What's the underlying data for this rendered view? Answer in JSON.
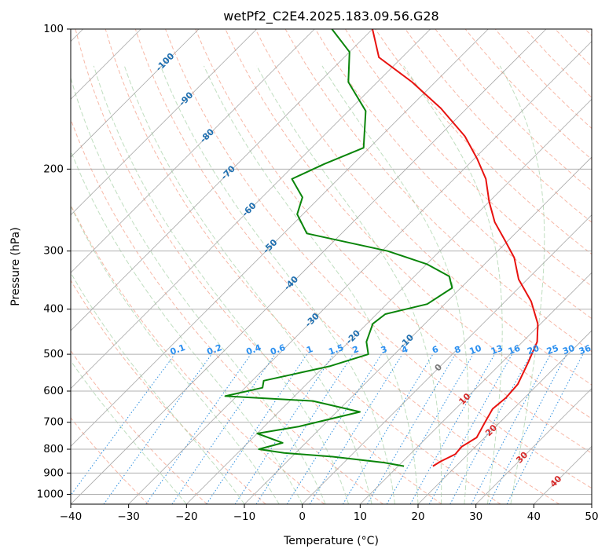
{
  "chart_data": {
    "type": "line",
    "chart_kind": "skew-t log-p",
    "title": "wetPf2_C2E4.2025.183.09.56.G28",
    "xlabel": "Temperature (°C)",
    "ylabel": "Pressure (hPa)",
    "xlim": [
      -40,
      50
    ],
    "ylim": [
      1050,
      100
    ],
    "y_scale": "log",
    "grid": true,
    "x_ticks": [
      -40,
      -30,
      -20,
      -10,
      0,
      10,
      20,
      30,
      40,
      50
    ],
    "y_ticks": [
      100,
      200,
      300,
      400,
      500,
      600,
      700,
      800,
      900,
      1000
    ],
    "colors": {
      "temperature": "#e8120f",
      "dewpoint": "#0a850a",
      "isotherm": "#9a9a9a",
      "dry_adiabat": "#f4a08a",
      "moist_adiabat": "#96c896",
      "mixing_ratio": "#3090e0",
      "isotherm_label": "#1f6fb0",
      "wetbulb_label": "#d62a2a"
    },
    "series": [
      {
        "role": "temperature",
        "points": [
          {
            "t": 16.0,
            "p": 870
          },
          {
            "t": 16.5,
            "p": 850
          },
          {
            "t": 17.8,
            "p": 820
          },
          {
            "t": 17.6,
            "p": 790
          },
          {
            "t": 18.6,
            "p": 755
          },
          {
            "t": 17.4,
            "p": 700
          },
          {
            "t": 16.4,
            "p": 655
          },
          {
            "t": 16.8,
            "p": 620
          },
          {
            "t": 16.5,
            "p": 580
          },
          {
            "t": 14.5,
            "p": 520
          },
          {
            "t": 12.5,
            "p": 470
          },
          {
            "t": 9.5,
            "p": 430
          },
          {
            "t": 4.5,
            "p": 385
          },
          {
            "t": -1.5,
            "p": 345
          },
          {
            "t": -6.0,
            "p": 310
          },
          {
            "t": -10.5,
            "p": 285
          },
          {
            "t": -15.5,
            "p": 260
          },
          {
            "t": -20.0,
            "p": 235
          },
          {
            "t": -24.5,
            "p": 210
          },
          {
            "t": -29.5,
            "p": 190
          },
          {
            "t": -35.5,
            "p": 170
          },
          {
            "t": -44.5,
            "p": 148
          },
          {
            "t": -54.0,
            "p": 130
          },
          {
            "t": -64.0,
            "p": 115
          },
          {
            "t": -70.0,
            "p": 100
          }
        ]
      },
      {
        "role": "dewpoint",
        "points": [
          {
            "t": 11.0,
            "p": 870
          },
          {
            "t": 7.0,
            "p": 855
          },
          {
            "t": -3.0,
            "p": 830
          },
          {
            "t": -12.0,
            "p": 815
          },
          {
            "t": -17.0,
            "p": 800
          },
          {
            "t": -14.0,
            "p": 775
          },
          {
            "t": -20.0,
            "p": 740
          },
          {
            "t": -14.0,
            "p": 715
          },
          {
            "t": -6.0,
            "p": 665
          },
          {
            "t": -16.0,
            "p": 630
          },
          {
            "t": -32.0,
            "p": 615
          },
          {
            "t": -27.0,
            "p": 590
          },
          {
            "t": -28.0,
            "p": 570
          },
          {
            "t": -19.0,
            "p": 530
          },
          {
            "t": -14.5,
            "p": 500
          },
          {
            "t": -17.0,
            "p": 470
          },
          {
            "t": -19.0,
            "p": 430
          },
          {
            "t": -18.5,
            "p": 410
          },
          {
            "t": -13.0,
            "p": 390
          },
          {
            "t": -11.5,
            "p": 360
          },
          {
            "t": -14.0,
            "p": 340
          },
          {
            "t": -20.0,
            "p": 320
          },
          {
            "t": -29.0,
            "p": 300
          },
          {
            "t": -46.0,
            "p": 275
          },
          {
            "t": -51.0,
            "p": 250
          },
          {
            "t": -53.0,
            "p": 230
          },
          {
            "t": -58.0,
            "p": 210
          },
          {
            "t": -55.0,
            "p": 195
          },
          {
            "t": -51.0,
            "p": 180
          },
          {
            "t": -57.0,
            "p": 150
          },
          {
            "t": -65.0,
            "p": 130
          },
          {
            "t": -70.0,
            "p": 112
          },
          {
            "t": -77.0,
            "p": 100
          }
        ]
      }
    ],
    "isotherm_labels": [
      "-100",
      "-90",
      "-80",
      "-70",
      "-60",
      "-50",
      "-40",
      "-30",
      "-20",
      "-10",
      "0",
      "10",
      "20",
      "30",
      "40"
    ],
    "mixing_ratio_labels": [
      "0.1",
      "0.2",
      "0.4",
      "0.6",
      "1",
      "1.5",
      "2",
      "3",
      "4",
      "6",
      "8",
      "10",
      "13",
      "16",
      "20",
      "25",
      "30",
      "36"
    ]
  }
}
